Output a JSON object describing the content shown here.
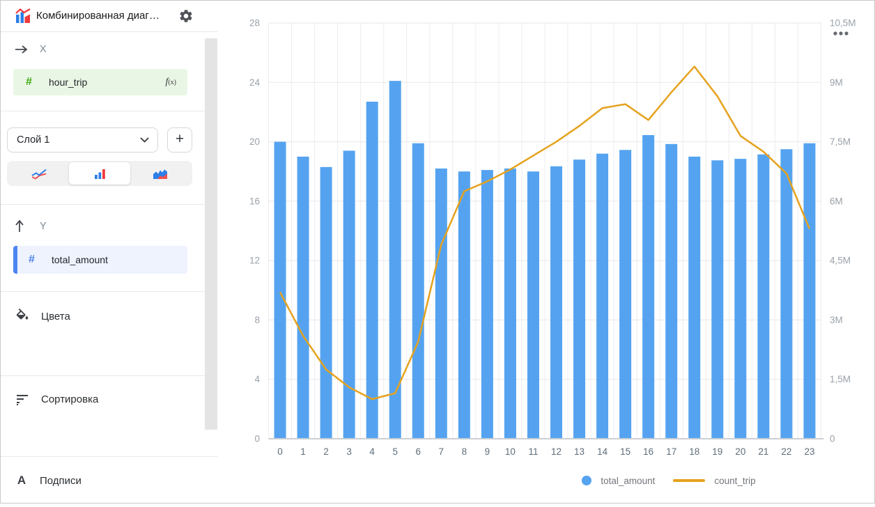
{
  "window": {
    "title": "Комбинированная диаг…"
  },
  "sidebar": {
    "x_section": {
      "label": "X",
      "field": {
        "name": "hour_trip",
        "type_icon": "#",
        "formula_f": "f",
        "formula_args": "(x)"
      }
    },
    "layer": {
      "selector_value": "Слой 1",
      "add_label": "+",
      "chart_types": [
        "line",
        "bar",
        "area"
      ],
      "selected_type": "bar"
    },
    "y_section": {
      "label": "Y",
      "field": {
        "name": "total_amount",
        "type_icon": "#"
      }
    },
    "menu": [
      {
        "label": "Цвета",
        "icon": "paint-bucket"
      },
      {
        "label": "Сортировка",
        "icon": "sort-lines"
      },
      {
        "label": "Подписи",
        "icon_letter": "A"
      }
    ]
  },
  "chart_data": {
    "type": "combo",
    "categories": [
      "0",
      "1",
      "2",
      "3",
      "4",
      "5",
      "6",
      "7",
      "8",
      "9",
      "10",
      "11",
      "12",
      "13",
      "14",
      "15",
      "16",
      "17",
      "18",
      "19",
      "20",
      "21",
      "22",
      "23"
    ],
    "series": [
      {
        "name": "total_amount",
        "type": "bar",
        "axis": "left",
        "color": "#55a3f0",
        "values": [
          20.0,
          19.0,
          18.3,
          19.4,
          22.7,
          24.1,
          19.9,
          18.2,
          18.0,
          18.1,
          18.2,
          18.0,
          18.35,
          18.8,
          19.2,
          19.45,
          20.45,
          19.85,
          19.0,
          18.75,
          18.85,
          19.15,
          19.5,
          19.9
        ]
      },
      {
        "name": "count_trip",
        "type": "line",
        "axis": "right",
        "color": "#e5a21e",
        "values_millions": [
          3.7,
          2.6,
          1.75,
          1.3,
          1.0,
          1.15,
          2.45,
          4.9,
          6.25,
          6.5,
          6.8,
          7.15,
          7.5,
          7.9,
          8.35,
          8.45,
          8.05,
          8.75,
          9.4,
          8.65,
          7.65,
          7.25,
          6.7,
          5.3
        ]
      }
    ],
    "left_axis": {
      "ticks": [
        "0",
        "4",
        "8",
        "12",
        "16",
        "20",
        "24",
        "28"
      ],
      "range": [
        0,
        28
      ]
    },
    "right_axis": {
      "ticks": [
        "0",
        "1,5M",
        "3M",
        "4,5M",
        "6M",
        "7,5M",
        "9M",
        "10,5M"
      ],
      "range_millions": [
        0,
        10.5
      ]
    },
    "grid": true,
    "legend_position": "bottom",
    "legend": [
      {
        "label": "total_amount",
        "marker": "dot",
        "color": "#55a3f0"
      },
      {
        "label": "count_trip",
        "marker": "line",
        "color": "#e5a21e"
      }
    ]
  },
  "colors": {
    "bar_blue": "#55a3f0",
    "line_orange": "#e5a21e",
    "x_field_green": "#3aaa0f",
    "y_field_blue": "#4e80e8"
  }
}
